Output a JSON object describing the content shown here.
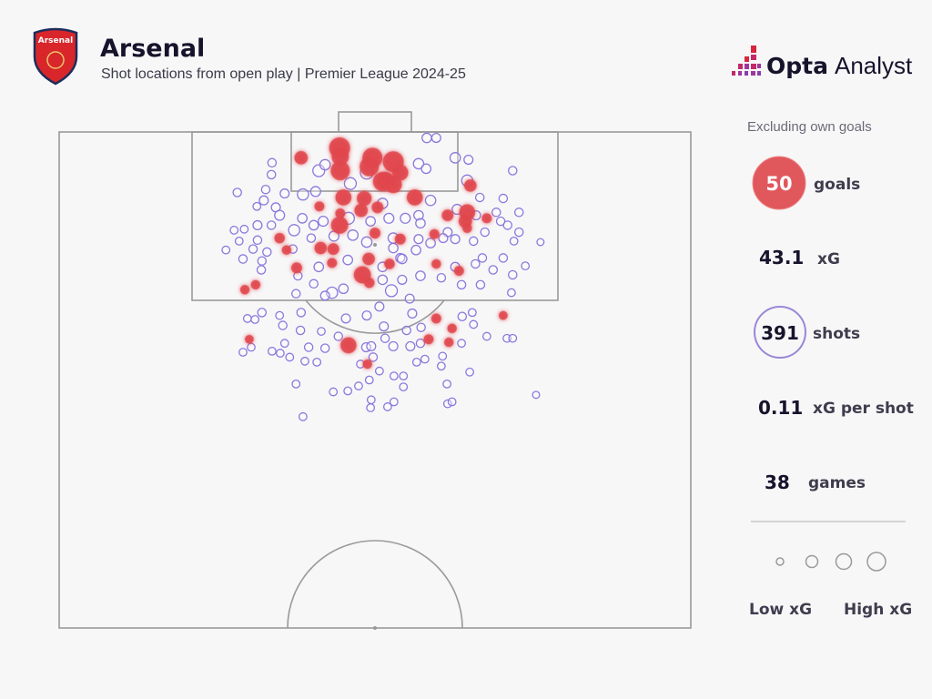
{
  "header": {
    "team": "Arsenal",
    "badge_text": "Arsenal",
    "subtitle": "Shot locations from open play | Premier League 2024-25",
    "brand_bold": "Opta",
    "brand_light": "Analyst"
  },
  "colors": {
    "goal": "#e0474c",
    "shot": "#8b78dd",
    "pitch_line": "#9a9a9a",
    "background": "#f7f7f8",
    "text": "#16132b"
  },
  "stats": {
    "note": "Excluding own goals",
    "goals_value": "50",
    "goals_label": "goals",
    "xg_value": "43.1",
    "xg_label": "xG",
    "shots_value": "391",
    "shots_label": "shots",
    "xg_per_shot_value": "0.11",
    "xg_per_shot_label": "xG per shot",
    "games_value": "38",
    "games_label": "games"
  },
  "legend": {
    "low": "Low xG",
    "high": "High xG"
  },
  "chart_data": {
    "type": "scatter",
    "title": "Arsenal",
    "subtitle": "Shot locations from open play | Premier League 2024-25",
    "pitch": "half pitch, attacking upwards; coordinates: across 0-100 (left to right), along 50-100 (halfway line to goal line)",
    "size_encoding": "xG",
    "goals": [
      [
        44.4,
        98.4,
        0.5
      ],
      [
        38.3,
        97.4,
        0.15
      ],
      [
        44.5,
        96.1,
        0.4
      ],
      [
        49.6,
        97.4,
        0.45
      ],
      [
        49.1,
        96.5,
        0.4
      ],
      [
        52.9,
        97.0,
        0.5
      ],
      [
        54.0,
        95.9,
        0.25
      ],
      [
        51.2,
        95.0,
        0.4
      ],
      [
        52.9,
        94.7,
        0.3
      ],
      [
        65.1,
        94.6,
        0.12
      ],
      [
        45.0,
        93.4,
        0.25
      ],
      [
        48.3,
        93.3,
        0.2
      ],
      [
        56.3,
        93.4,
        0.25
      ],
      [
        41.2,
        92.5,
        0.06
      ],
      [
        47.8,
        92.1,
        0.15
      ],
      [
        50.4,
        92.4,
        0.1
      ],
      [
        44.5,
        91.8,
        0.06
      ],
      [
        44.4,
        90.6,
        0.3
      ],
      [
        64.6,
        91.9,
        0.25
      ],
      [
        61.5,
        91.6,
        0.1
      ],
      [
        67.7,
        91.3,
        0.06
      ],
      [
        64.3,
        91.0,
        0.15
      ],
      [
        64.6,
        90.3,
        0.05
      ],
      [
        50.0,
        89.8,
        0.08
      ],
      [
        54.0,
        89.2,
        0.08
      ],
      [
        59.4,
        89.7,
        0.06
      ],
      [
        34.9,
        89.3,
        0.07
      ],
      [
        36.0,
        88.1,
        0.05
      ],
      [
        41.4,
        88.3,
        0.12
      ],
      [
        43.4,
        88.2,
        0.1
      ],
      [
        43.2,
        86.8,
        0.06
      ],
      [
        49.0,
        87.2,
        0.12
      ],
      [
        52.3,
        86.7,
        0.07
      ],
      [
        59.7,
        86.7,
        0.05
      ],
      [
        63.3,
        86.0,
        0.06
      ],
      [
        37.6,
        86.3,
        0.08
      ],
      [
        48.0,
        85.6,
        0.3
      ],
      [
        49.1,
        84.8,
        0.07
      ],
      [
        31.1,
        84.6,
        0.05
      ],
      [
        29.4,
        84.1,
        0.05
      ],
      [
        30.1,
        79.1,
        0.04
      ],
      [
        45.8,
        78.5,
        0.25
      ],
      [
        48.8,
        76.6,
        0.05
      ],
      [
        59.7,
        81.2,
        0.06
      ],
      [
        62.2,
        80.2,
        0.05
      ],
      [
        58.5,
        79.1,
        0.06
      ],
      [
        61.7,
        78.8,
        0.05
      ],
      [
        70.3,
        81.5,
        0.04
      ],
      [
        44.5,
        97.5,
        0.3
      ],
      [
        51.7,
        95.1,
        0.3
      ]
    ],
    "shots": [
      [
        58.2,
        99.4,
        0.06
      ],
      [
        59.7,
        99.4,
        0.05
      ],
      [
        62.7,
        97.4,
        0.08
      ],
      [
        64.8,
        97.2,
        0.05
      ],
      [
        71.8,
        96.1,
        0.04
      ],
      [
        33.7,
        96.9,
        0.04
      ],
      [
        33.6,
        95.7,
        0.04
      ],
      [
        41.1,
        96.1,
        0.12
      ],
      [
        42.1,
        96.7,
        0.08
      ],
      [
        46.1,
        94.8,
        0.12
      ],
      [
        56.9,
        96.8,
        0.08
      ],
      [
        58.1,
        96.3,
        0.06
      ],
      [
        48.7,
        95.9,
        0.15
      ],
      [
        64.6,
        95.1,
        0.1
      ],
      [
        28.2,
        93.9,
        0.04
      ],
      [
        32.7,
        94.2,
        0.04
      ],
      [
        35.7,
        93.8,
        0.05
      ],
      [
        38.6,
        93.7,
        0.1
      ],
      [
        40.6,
        94.0,
        0.07
      ],
      [
        51.2,
        92.8,
        0.08
      ],
      [
        58.8,
        93.1,
        0.08
      ],
      [
        66.6,
        93.4,
        0.04
      ],
      [
        70.3,
        93.3,
        0.04
      ],
      [
        32.4,
        93.1,
        0.05
      ],
      [
        31.3,
        92.5,
        0.03
      ],
      [
        34.3,
        92.4,
        0.05
      ],
      [
        34.9,
        91.6,
        0.07
      ],
      [
        38.5,
        91.3,
        0.06
      ],
      [
        41.8,
        91.0,
        0.07
      ],
      [
        45.8,
        91.3,
        0.12
      ],
      [
        49.3,
        91.0,
        0.06
      ],
      [
        52.2,
        91.3,
        0.07
      ],
      [
        54.8,
        91.3,
        0.07
      ],
      [
        56.9,
        91.6,
        0.06
      ],
      [
        57.2,
        90.8,
        0.06
      ],
      [
        63.0,
        92.2,
        0.07
      ],
      [
        66.0,
        91.6,
        0.05
      ],
      [
        69.2,
        91.9,
        0.04
      ],
      [
        72.8,
        91.9,
        0.04
      ],
      [
        69.9,
        91.0,
        0.04
      ],
      [
        71.0,
        90.6,
        0.04
      ],
      [
        27.7,
        90.1,
        0.03
      ],
      [
        29.3,
        90.2,
        0.03
      ],
      [
        31.4,
        90.6,
        0.05
      ],
      [
        33.6,
        90.6,
        0.04
      ],
      [
        37.2,
        90.1,
        0.1
      ],
      [
        40.3,
        90.6,
        0.06
      ],
      [
        46.5,
        89.6,
        0.08
      ],
      [
        43.5,
        89.5,
        0.07
      ],
      [
        52.9,
        89.3,
        0.08
      ],
      [
        56.9,
        89.2,
        0.05
      ],
      [
        61.5,
        89.9,
        0.05
      ],
      [
        67.4,
        89.9,
        0.04
      ],
      [
        72.8,
        89.9,
        0.04
      ],
      [
        76.2,
        88.9,
        0.02
      ],
      [
        28.5,
        89.0,
        0.03
      ],
      [
        31.4,
        89.1,
        0.04
      ],
      [
        26.4,
        88.1,
        0.03
      ],
      [
        30.7,
        88.2,
        0.04
      ],
      [
        32.9,
        87.9,
        0.04
      ],
      [
        37.0,
        88.2,
        0.04
      ],
      [
        39.9,
        89.3,
        0.04
      ],
      [
        48.7,
        88.9,
        0.08
      ],
      [
        52.9,
        88.3,
        0.06
      ],
      [
        54.0,
        87.3,
        0.05
      ],
      [
        56.5,
        88.1,
        0.06
      ],
      [
        58.8,
        88.8,
        0.06
      ],
      [
        60.8,
        89.3,
        0.05
      ],
      [
        62.7,
        89.2,
        0.05
      ],
      [
        65.6,
        89.0,
        0.04
      ],
      [
        67.0,
        87.3,
        0.04
      ],
      [
        70.3,
        87.3,
        0.04
      ],
      [
        72.0,
        89.0,
        0.03
      ],
      [
        29.1,
        87.2,
        0.04
      ],
      [
        32.1,
        87.0,
        0.04
      ],
      [
        41.1,
        86.4,
        0.06
      ],
      [
        45.7,
        87.1,
        0.06
      ],
      [
        51.2,
        86.4,
        0.06
      ],
      [
        54.3,
        87.2,
        0.06
      ],
      [
        57.2,
        85.5,
        0.06
      ],
      [
        60.5,
        85.3,
        0.04
      ],
      [
        62.7,
        86.4,
        0.05
      ],
      [
        65.9,
        86.7,
        0.04
      ],
      [
        68.7,
        86.1,
        0.04
      ],
      [
        71.8,
        85.6,
        0.04
      ],
      [
        73.8,
        86.5,
        0.03
      ],
      [
        32.0,
        86.1,
        0.04
      ],
      [
        37.8,
        85.5,
        0.04
      ],
      [
        40.3,
        84.7,
        0.04
      ],
      [
        43.2,
        83.8,
        0.1
      ],
      [
        45.0,
        84.2,
        0.06
      ],
      [
        52.6,
        84.0,
        0.12
      ],
      [
        55.5,
        83.2,
        0.05
      ],
      [
        37.5,
        83.7,
        0.04
      ],
      [
        42.1,
        83.5,
        0.05
      ],
      [
        51.2,
        85.1,
        0.06
      ],
      [
        54.3,
        85.1,
        0.05
      ],
      [
        63.7,
        84.6,
        0.04
      ],
      [
        66.7,
        84.6,
        0.04
      ],
      [
        71.6,
        83.8,
        0.03
      ],
      [
        29.8,
        81.2,
        0.03
      ],
      [
        31.0,
        81.1,
        0.03
      ],
      [
        32.1,
        81.8,
        0.04
      ],
      [
        34.9,
        81.5,
        0.03
      ],
      [
        38.3,
        81.8,
        0.04
      ],
      [
        35.4,
        80.5,
        0.04
      ],
      [
        38.2,
        80.0,
        0.04
      ],
      [
        41.5,
        79.9,
        0.03
      ],
      [
        45.4,
        81.2,
        0.05
      ],
      [
        48.7,
        81.5,
        0.05
      ],
      [
        50.7,
        82.4,
        0.05
      ],
      [
        51.4,
        80.4,
        0.05
      ],
      [
        55.9,
        81.7,
        0.05
      ],
      [
        55.0,
        80.0,
        0.04
      ],
      [
        57.3,
        80.3,
        0.04
      ],
      [
        63.8,
        81.4,
        0.04
      ],
      [
        65.4,
        81.8,
        0.03
      ],
      [
        65.6,
        80.6,
        0.03
      ],
      [
        30.4,
        78.3,
        0.03
      ],
      [
        29.1,
        77.8,
        0.03
      ],
      [
        33.7,
        77.9,
        0.03
      ],
      [
        35.7,
        78.7,
        0.03
      ],
      [
        39.5,
        78.3,
        0.04
      ],
      [
        42.1,
        78.2,
        0.04
      ],
      [
        44.2,
        79.4,
        0.04
      ],
      [
        48.6,
        78.3,
        0.05
      ],
      [
        49.4,
        78.4,
        0.05
      ],
      [
        51.6,
        79.2,
        0.04
      ],
      [
        52.9,
        78.4,
        0.05
      ],
      [
        55.6,
        78.4,
        0.05
      ],
      [
        57.2,
        78.7,
        0.04
      ],
      [
        63.7,
        78.7,
        0.03
      ],
      [
        67.7,
        79.4,
        0.03
      ],
      [
        70.9,
        79.2,
        0.03
      ],
      [
        71.8,
        79.2,
        0.03
      ],
      [
        35.0,
        77.7,
        0.03
      ],
      [
        36.5,
        77.3,
        0.03
      ],
      [
        38.9,
        76.9,
        0.03
      ],
      [
        40.8,
        76.8,
        0.03
      ],
      [
        49.7,
        77.3,
        0.04
      ],
      [
        47.7,
        76.6,
        0.03
      ],
      [
        56.6,
        76.8,
        0.03
      ],
      [
        57.9,
        77.1,
        0.03
      ],
      [
        60.7,
        77.4,
        0.03
      ],
      [
        60.5,
        76.4,
        0.03
      ],
      [
        65.0,
        75.8,
        0.03
      ],
      [
        50.7,
        75.9,
        0.03
      ],
      [
        49.1,
        75.0,
        0.03
      ],
      [
        53.0,
        75.4,
        0.03
      ],
      [
        54.5,
        75.4,
        0.03
      ],
      [
        54.5,
        74.3,
        0.03
      ],
      [
        47.4,
        74.4,
        0.03
      ],
      [
        61.4,
        74.6,
        0.03
      ],
      [
        37.5,
        74.6,
        0.03
      ],
      [
        43.4,
        73.8,
        0.03
      ],
      [
        45.7,
        73.9,
        0.03
      ],
      [
        49.4,
        73.0,
        0.03
      ],
      [
        49.3,
        72.2,
        0.03
      ],
      [
        52.0,
        72.3,
        0.03
      ],
      [
        53.0,
        72.8,
        0.03
      ],
      [
        61.5,
        72.6,
        0.03
      ],
      [
        62.2,
        72.8,
        0.03
      ],
      [
        75.5,
        73.5,
        0.02
      ],
      [
        38.6,
        71.3,
        0.03
      ]
    ],
    "legend_sizes": "Low xG to High xG"
  }
}
